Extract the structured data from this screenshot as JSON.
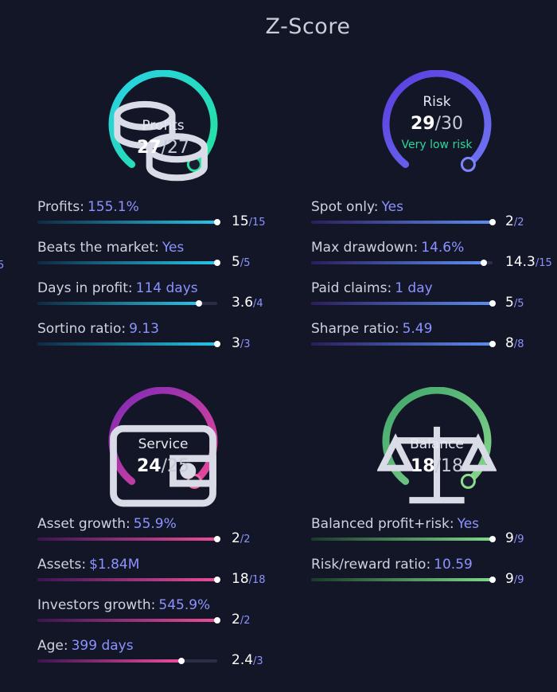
{
  "title": "Z-Score",
  "edge_fragment": "5",
  "colors": {
    "background": "#121626",
    "value_text": "#8c93ff",
    "very_low_risk": "#2dd69a"
  },
  "cards": {
    "profits": {
      "icon": "coins-icon",
      "label": "Profits",
      "score": "27",
      "max": "/27",
      "colors": [
        "#29d0e6",
        "#24e39e"
      ],
      "dot_color": "#24e39e",
      "metrics": [
        {
          "label": "Profits:",
          "value": "155.1%",
          "score": "15",
          "max": "/15",
          "fraction": 1.0
        },
        {
          "label": "Beats the market:",
          "value": "Yes",
          "score": "5",
          "max": "/5",
          "fraction": 1.0
        },
        {
          "label": "Days in profit:",
          "value": "114 days",
          "score": "3.6",
          "max": "/4",
          "fraction": 0.9
        },
        {
          "label": "Sortino ratio:",
          "value": "9.13",
          "score": "3",
          "max": "/3",
          "fraction": 1.0
        }
      ],
      "bar_colors": [
        "#0e2a42",
        "#27c6ea"
      ]
    },
    "risk": {
      "icon": "",
      "label": "Risk",
      "score": "29",
      "max": "/30",
      "sub": "Very low risk",
      "colors": [
        "#5a3de0",
        "#6e73f2"
      ],
      "dot_color": "#7e84ff",
      "metrics": [
        {
          "label": "Spot only:",
          "value": "Yes",
          "score": "2",
          "max": "/2",
          "fraction": 1.0
        },
        {
          "label": "Max drawdown:",
          "value": "14.6%",
          "score": "14.3",
          "max": "/15",
          "fraction": 0.953
        },
        {
          "label": "Paid claims:",
          "value": "1 day",
          "score": "5",
          "max": "/5",
          "fraction": 1.0
        },
        {
          "label": "Sharpe ratio:",
          "value": "5.49",
          "score": "8",
          "max": "/8",
          "fraction": 1.0
        }
      ],
      "bar_colors": [
        "#2b1d5c",
        "#5c8ef0"
      ]
    },
    "service": {
      "icon": "wallet-icon",
      "label": "Service",
      "score": "24",
      "max": "/25",
      "colors": [
        "#7d2ab5",
        "#e9489a"
      ],
      "dot_color": "#ee6aa6",
      "metrics": [
        {
          "label": "Asset growth:",
          "value": "55.9%",
          "score": "2",
          "max": "/2",
          "fraction": 1.0
        },
        {
          "label": "Assets:",
          "value": "$1.84M",
          "score": "18",
          "max": "/18",
          "fraction": 1.0
        },
        {
          "label": "Investors growth:",
          "value": "545.9%",
          "score": "2",
          "max": "/2",
          "fraction": 1.0
        },
        {
          "label": "Age:",
          "value": "399 days",
          "score": "2.4",
          "max": "/3",
          "fraction": 0.8
        }
      ],
      "bar_colors": [
        "#3a1550",
        "#ec4d9c"
      ]
    },
    "balance": {
      "icon": "scales-icon",
      "label": "Balance",
      "score": "18",
      "max": "/18",
      "colors": [
        "#3fa66b",
        "#86d58c"
      ],
      "dot_color": "#8edc8d",
      "metrics": [
        {
          "label": "Balanced profit+risk:",
          "value": "Yes",
          "score": "9",
          "max": "/9",
          "fraction": 1.0
        },
        {
          "label": "Risk/reward ratio:",
          "value": "10.59",
          "score": "9",
          "max": "/9",
          "fraction": 1.0
        }
      ],
      "bar_colors": [
        "#1b3a2a",
        "#7fd98a"
      ]
    }
  }
}
